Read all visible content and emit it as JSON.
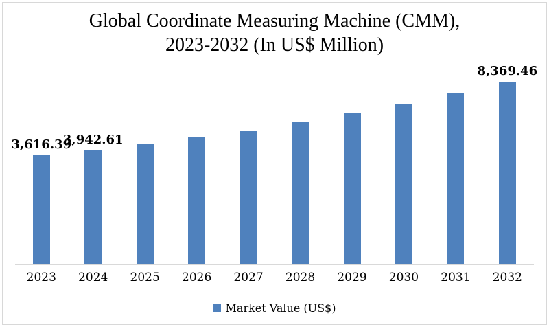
{
  "chart_data": {
    "type": "bar",
    "title": "Global Coordinate Measuring Machine (CMM),\n2023-2032 (In US$ Million)",
    "xlabel": "",
    "ylabel": "",
    "categories": [
      "2023",
      "2024",
      "2025",
      "2026",
      "2027",
      "2028",
      "2029",
      "2030",
      "2031",
      "2032"
    ],
    "values": [
      3616.39,
      3942.61,
      4331.6,
      4759.0,
      5228.6,
      5744.5,
      6311.3,
      6934.1,
      7618.3,
      8369.46
    ],
    "data_labels": [
      "3,616.39",
      "3,942.61",
      "",
      "",
      "",
      "",
      "",
      "",
      "",
      "8,369.46"
    ],
    "legend": [
      {
        "label": "Market Value (US$)",
        "color": "#4F81BD"
      }
    ],
    "legend_position": "bottom",
    "bar_color": "#4F81BD",
    "axis_line_color": "#d9d9d9",
    "grid": false,
    "y_axis_visible": false,
    "background_color": "#ffffff",
    "text_color": "#000000"
  }
}
